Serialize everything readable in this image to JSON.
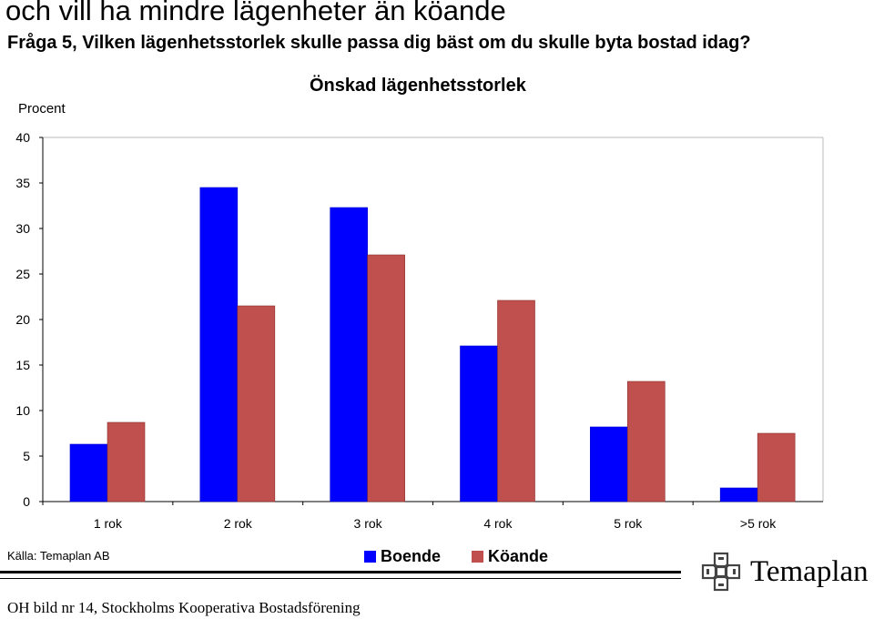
{
  "header": {
    "title": "och vill ha mindre lägenheter än köande",
    "question": "Fråga 5, Vilken lägenhetsstorlek skulle passa dig bäst om du skulle byta bostad idag?"
  },
  "chart_data": {
    "type": "bar",
    "title": "Önskad lägenhetsstorlek",
    "ylabel": "Procent",
    "xlabel": "",
    "ylim": [
      0,
      40
    ],
    "yticks": [
      0,
      5,
      10,
      15,
      20,
      25,
      30,
      35,
      40
    ],
    "categories": [
      "1 rok",
      "2 rok",
      "3 rok",
      "4 rok",
      "5 rok",
      ">5 rok"
    ],
    "series": [
      {
        "name": "Boende",
        "color": "#0000ff",
        "values": [
          6.3,
          34.5,
          32.3,
          17.1,
          8.2,
          1.5
        ]
      },
      {
        "name": "Köande",
        "color": "#c0504d",
        "values": [
          8.7,
          21.5,
          27.1,
          22.1,
          13.2,
          7.5
        ]
      }
    ],
    "legend": "bottom-center",
    "grid": false
  },
  "source": "Källa: Temaplan AB",
  "logo": {
    "text": "Temaplan"
  },
  "footer": "OH bild nr 14, Stockholms Kooperativa Bostadsförening"
}
